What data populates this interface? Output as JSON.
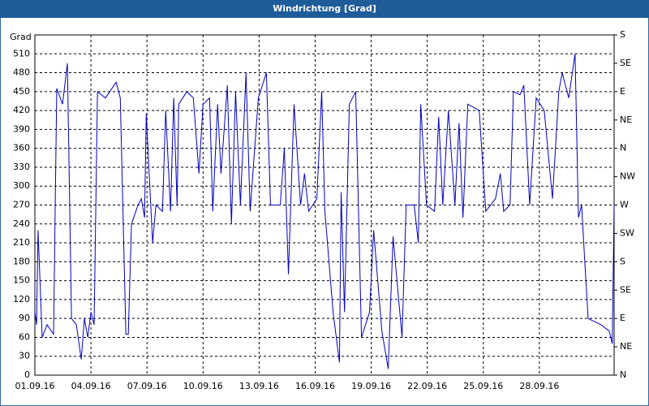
{
  "chart_data": {
    "type": "line",
    "title": "Windrichtung [Grad]",
    "y_label": "Grad",
    "x": [
      0,
      0.09,
      0.17,
      0.39,
      0.65,
      1.0,
      1.17,
      1.48,
      1.74,
      1.96,
      2.22,
      2.48,
      2.65,
      2.83,
      3.0,
      3.17,
      3.35,
      3.78,
      4.35,
      4.57,
      4.87,
      5.0,
      5.17,
      5.52,
      5.7,
      5.87,
      5.96,
      6.3,
      6.48,
      6.83,
      7.0,
      7.26,
      7.43,
      7.61,
      7.7,
      8.13,
      8.48,
      8.78,
      9.0,
      9.35,
      9.52,
      9.78,
      9.96,
      10.3,
      10.52,
      10.74,
      11.0,
      11.3,
      11.52,
      11.96,
      12.39,
      12.61,
      13.13,
      13.35,
      13.57,
      13.87,
      14.22,
      14.43,
      14.65,
      15.09,
      15.35,
      15.52,
      15.96,
      16.3,
      16.39,
      16.57,
      16.83,
      17.17,
      17.48,
      17.91,
      18.13,
      18.57,
      18.91,
      19.17,
      19.65,
      19.87,
      20.3,
      20.52,
      20.65,
      20.96,
      21.39,
      21.61,
      21.83,
      22.13,
      22.48,
      22.7,
      22.91,
      23.17,
      23.78,
      24.13,
      24.65,
      24.91,
      25.09,
      25.43,
      25.61,
      25.96,
      26.17,
      26.48,
      26.83,
      27.26,
      27.7,
      28.04,
      28.22,
      28.57,
      28.91,
      29.09,
      29.26,
      29.43,
      29.61,
      30.3,
      30.74,
      30.9,
      31.0
    ],
    "series": [
      {
        "name": "Windrichtung",
        "color": "#0000c0",
        "values": [
          100,
          80,
          230,
          60,
          80,
          65,
          455,
          430,
          495,
          90,
          80,
          25,
          90,
          60,
          100,
          80,
          450,
          440,
          465,
          440,
          65,
          65,
          240,
          270,
          280,
          250,
          415,
          210,
          270,
          260,
          420,
          260,
          440,
          270,
          430,
          450,
          440,
          320,
          430,
          440,
          260,
          430,
          320,
          460,
          240,
          450,
          270,
          480,
          260,
          440,
          480,
          270,
          270,
          360,
          160,
          430,
          270,
          320,
          260,
          280,
          450,
          260,
          100,
          20,
          290,
          100,
          430,
          450,
          60,
          100,
          230,
          70,
          10,
          220,
          60,
          270,
          270,
          210,
          430,
          270,
          260,
          410,
          270,
          420,
          270,
          400,
          250,
          430,
          420,
          260,
          280,
          320,
          260,
          270,
          450,
          445,
          460,
          270,
          440,
          420,
          280,
          450,
          480,
          440,
          510,
          250,
          270,
          180,
          90,
          80,
          70,
          50,
          270
        ]
      }
    ],
    "xlim": [
      0,
      31
    ],
    "xticks": [
      {
        "value": 0,
        "label": "01.09.16"
      },
      {
        "value": 3,
        "label": "04.09.16"
      },
      {
        "value": 6,
        "label": "07.09.16"
      },
      {
        "value": 9,
        "label": "10.09.16"
      },
      {
        "value": 12,
        "label": "13.09.16"
      },
      {
        "value": 15,
        "label": "16.09.16"
      },
      {
        "value": 18,
        "label": "19.09.16"
      },
      {
        "value": 21,
        "label": "22.09.16"
      },
      {
        "value": 24,
        "label": "25.09.16"
      },
      {
        "value": 27,
        "label": "28.09.16"
      }
    ],
    "ylim": [
      0,
      540
    ],
    "yticks": [
      0,
      30,
      60,
      90,
      120,
      150,
      180,
      210,
      240,
      270,
      300,
      330,
      360,
      390,
      420,
      450,
      480,
      510
    ],
    "y2lim": [
      0,
      540
    ],
    "y2ticks": [
      {
        "value": 0,
        "label": "N"
      },
      {
        "value": 45,
        "label": "NE"
      },
      {
        "value": 90,
        "label": "E"
      },
      {
        "value": 135,
        "label": "SE"
      },
      {
        "value": 180,
        "label": "S"
      },
      {
        "value": 225,
        "label": "SW"
      },
      {
        "value": 270,
        "label": "W"
      },
      {
        "value": 315,
        "label": "NW"
      },
      {
        "value": 360,
        "label": "N"
      },
      {
        "value": 405,
        "label": "NE"
      },
      {
        "value": 450,
        "label": "E"
      },
      {
        "value": 495,
        "label": "SE"
      },
      {
        "value": 540,
        "label": "S"
      }
    ],
    "grid": true
  }
}
